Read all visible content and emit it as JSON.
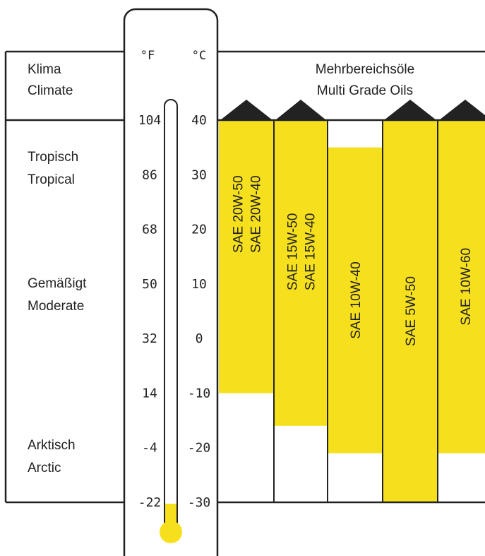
{
  "header": {
    "climate_de": "Klima",
    "climate_en": "Climate",
    "oils_de": "Mehrbereichsöle",
    "oils_en": "Multi Grade Oils"
  },
  "climate_zones": [
    {
      "de": "Tropisch",
      "en": "Tropical"
    },
    {
      "de": "Gemäßigt",
      "en": "Moderate"
    },
    {
      "de": "Arktisch",
      "en": "Arctic"
    }
  ],
  "chart_data": {
    "type": "bar",
    "title": "",
    "units": {
      "fahrenheit": "°F",
      "celsius": "°C"
    },
    "fahrenheit_ticks": [
      "104",
      "86",
      "68",
      "50",
      "32",
      "14",
      "-4",
      "-22"
    ],
    "celsius_ticks": [
      "40",
      "30",
      "20",
      "10",
      "0",
      "-10",
      "-20",
      "-30"
    ],
    "ylim": [
      -30,
      40
    ],
    "thermometer_fill_top": -30,
    "series": [
      {
        "labels": [
          "SAE 20W-50",
          "SAE 20W-40"
        ],
        "low": -10,
        "high": 40,
        "open_top": true
      },
      {
        "labels": [
          "SAE 15W-50",
          "SAE 15W-40"
        ],
        "low": -16,
        "high": 40,
        "open_top": true
      },
      {
        "labels": [
          "SAE 10W-40"
        ],
        "low": -21,
        "high": 35,
        "open_top": false
      },
      {
        "labels": [
          "SAE 5W-50"
        ],
        "low": -30,
        "high": 40,
        "open_top": true
      },
      {
        "labels": [
          "SAE 10W-60"
        ],
        "low": -21,
        "high": 40,
        "open_top": true
      }
    ],
    "colors": {
      "bar": "#f6e01d",
      "line": "#222222",
      "thermometer": "#f6e01d"
    }
  }
}
